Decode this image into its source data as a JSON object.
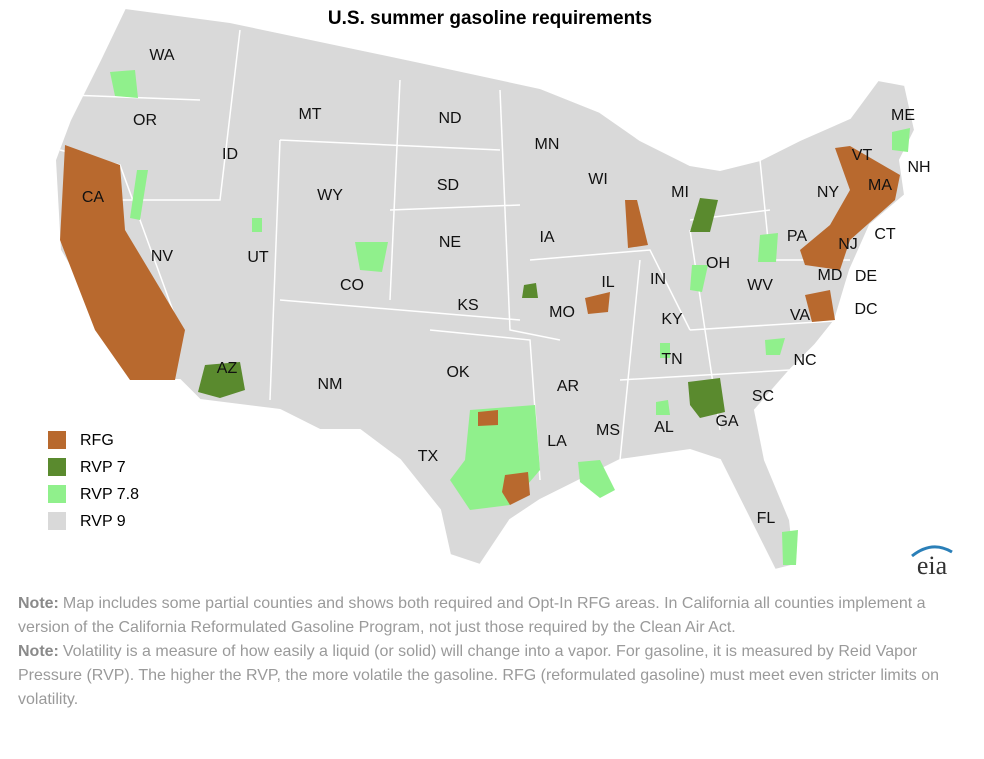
{
  "title": "U.S. summer gasoline requirements",
  "legend": [
    {
      "label": "RFG",
      "color": "#b8692e"
    },
    {
      "label": "RVP 7",
      "color": "#5a8a2e"
    },
    {
      "label": "RVP 7.8",
      "color": "#90f08c"
    },
    {
      "label": "RVP 9",
      "color": "#d9d9d9"
    }
  ],
  "states": [
    "WA",
    "OR",
    "MT",
    "ND",
    "MN",
    "ID",
    "WY",
    "SD",
    "WI",
    "MI",
    "ME",
    "VT",
    "NH",
    "MA",
    "NY",
    "CT",
    "PA",
    "NJ",
    "CA",
    "NV",
    "UT",
    "CO",
    "NE",
    "IA",
    "IL",
    "IN",
    "OH",
    "WV",
    "MD",
    "DE",
    "DC",
    "VA",
    "KS",
    "MO",
    "KY",
    "TN",
    "NC",
    "AZ",
    "NM",
    "OK",
    "AR",
    "SC",
    "MS",
    "AL",
    "GA",
    "TX",
    "LA",
    "FL"
  ],
  "logo": "eia",
  "notes": [
    {
      "label": "Note:",
      "text": "Map includes some partial counties and shows both required and Opt-In RFG areas. In California all counties implement a version of the California Reformulated Gasoline Program, not just those required by the Clean Air Act."
    },
    {
      "label": "Note:",
      "text": "Volatility is a measure of how easily a liquid (or solid) will change into a vapor. For gasoline, it is measured by Reid Vapor Pressure (RVP). The higher the RVP, the more volatile the gasoline. RFG (reformulated gasoline) must meet even stricter limits on volatility."
    }
  ]
}
